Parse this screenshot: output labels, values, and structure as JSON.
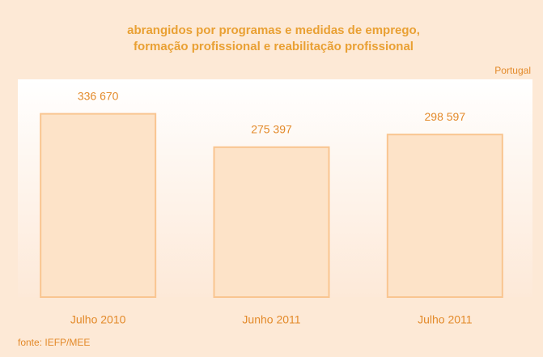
{
  "chart_data": {
    "type": "bar",
    "title": [
      "abrangidos por programas e medidas de emprego,",
      "formação profissional e reabilitação profissional"
    ],
    "annotation": "Portugal",
    "source": "fonte: IEFP/MEE",
    "categories": [
      "Julho 2010",
      "Junho 2011",
      "Julho 2011"
    ],
    "values": [
      336670,
      275397,
      298597
    ],
    "value_labels": [
      "336 670",
      "275 397",
      "298 597"
    ],
    "color": "#fde3c8",
    "ylim": [
      0,
      400000
    ]
  }
}
